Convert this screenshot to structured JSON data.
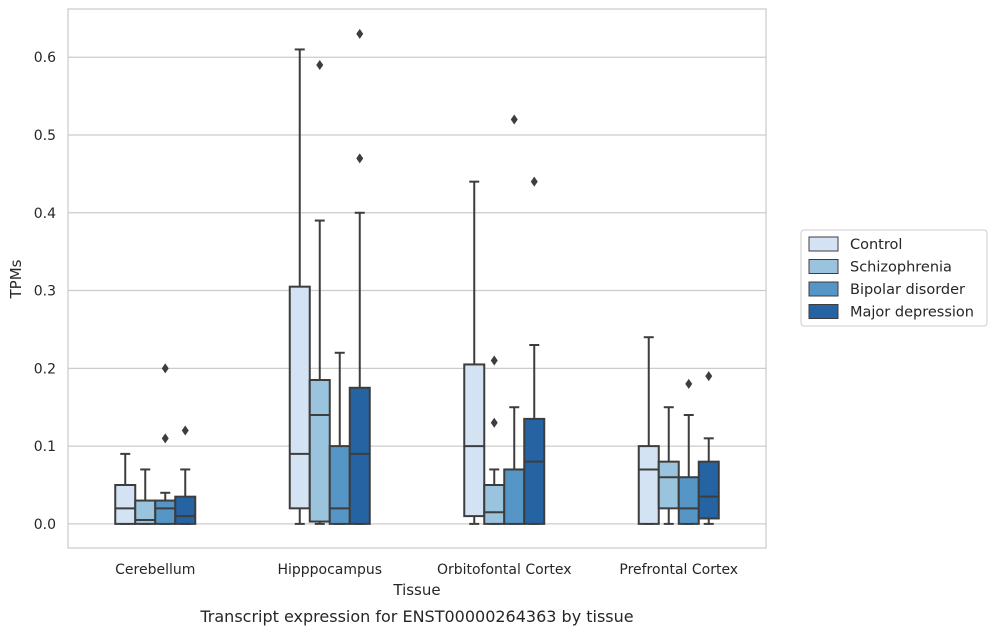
{
  "chart_data": {
    "type": "box",
    "xlabel": "Tissue",
    "ylabel": "TPMs",
    "caption": "Transcript expression for ENST00000264363 by tissue",
    "ylim": [
      -0.031,
      0.662
    ],
    "yticks": [
      "0.0",
      "0.1",
      "0.2",
      "0.3",
      "0.4",
      "0.5",
      "0.6"
    ],
    "grid": true,
    "legend_position": "right",
    "categories": [
      "Cerebellum",
      "Hipppocampus",
      "Orbitofontal Cortex",
      "Prefrontal Cortex"
    ],
    "series": [
      {
        "name": "Control",
        "color": "#d4e3f3",
        "boxes": [
          {
            "whislo": 0,
            "q1": 0,
            "med": 0.02,
            "q3": 0.05,
            "whishi": 0.09,
            "fliers": []
          },
          {
            "whislo": 0,
            "q1": 0.02,
            "med": 0.09,
            "q3": 0.305,
            "whishi": 0.61,
            "fliers": []
          },
          {
            "whislo": 0,
            "q1": 0.01,
            "med": 0.1,
            "q3": 0.205,
            "whishi": 0.44,
            "fliers": []
          },
          {
            "whislo": 0,
            "q1": 0,
            "med": 0.07,
            "q3": 0.1,
            "whishi": 0.24,
            "fliers": []
          }
        ]
      },
      {
        "name": "Schizophrenia",
        "color": "#9ac3dd",
        "boxes": [
          {
            "whislo": 0,
            "q1": 0,
            "med": 0.005,
            "q3": 0.03,
            "whishi": 0.07,
            "fliers": []
          },
          {
            "whislo": 0,
            "q1": 0.003,
            "med": 0.14,
            "q3": 0.185,
            "whishi": 0.39,
            "fliers": [
              0.59
            ]
          },
          {
            "whislo": 0,
            "q1": 0,
            "med": 0.015,
            "q3": 0.05,
            "whishi": 0.07,
            "fliers": [
              0.13,
              0.21
            ]
          },
          {
            "whislo": 0,
            "q1": 0.02,
            "med": 0.06,
            "q3": 0.08,
            "whishi": 0.15,
            "fliers": []
          }
        ]
      },
      {
        "name": "Bipolar disorder",
        "color": "#5596c7",
        "boxes": [
          {
            "whislo": 0,
            "q1": 0,
            "med": 0.02,
            "q3": 0.03,
            "whishi": 0.04,
            "fliers": [
              0.11,
              0.2
            ]
          },
          {
            "whislo": 0,
            "q1": 0,
            "med": 0.02,
            "q3": 0.1,
            "whishi": 0.22,
            "fliers": []
          },
          {
            "whislo": 0,
            "q1": 0,
            "med": 0.07,
            "q3": 0.07,
            "whishi": 0.15,
            "fliers": [
              0.52
            ]
          },
          {
            "whislo": 0,
            "q1": 0,
            "med": 0.02,
            "q3": 0.06,
            "whishi": 0.14,
            "fliers": [
              0.18
            ]
          }
        ]
      },
      {
        "name": "Major depression",
        "color": "#2563a3",
        "boxes": [
          {
            "whislo": 0,
            "q1": 0,
            "med": 0.01,
            "q3": 0.035,
            "whishi": 0.07,
            "fliers": [
              0.12
            ]
          },
          {
            "whislo": 0,
            "q1": 0,
            "med": 0.09,
            "q3": 0.175,
            "whishi": 0.4,
            "fliers": [
              0.47,
              0.63
            ]
          },
          {
            "whislo": 0,
            "q1": 0,
            "med": 0.08,
            "q3": 0.135,
            "whishi": 0.23,
            "fliers": [
              0.44
            ]
          },
          {
            "whislo": 0,
            "q1": 0.007,
            "med": 0.035,
            "q3": 0.08,
            "whishi": 0.11,
            "fliers": [
              0.19
            ]
          }
        ]
      }
    ]
  }
}
